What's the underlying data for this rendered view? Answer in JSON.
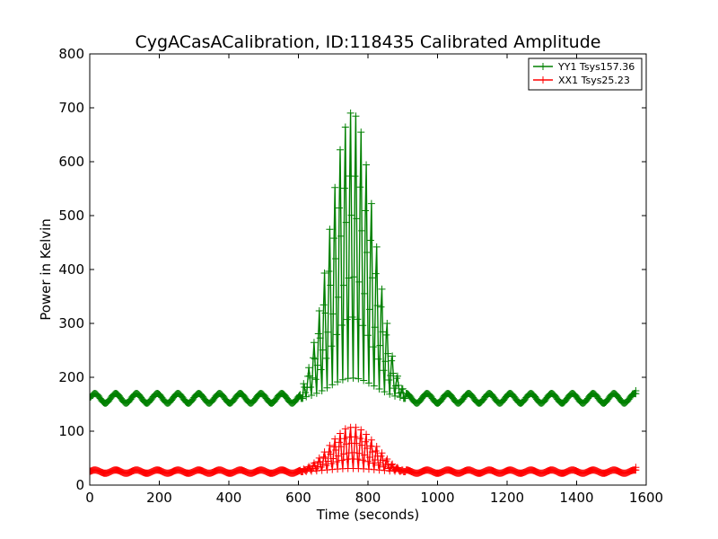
{
  "chart_data": {
    "type": "line",
    "title": "CygACasACalibration, ID:118435 Calibrated Amplitude",
    "xlabel": "Time (seconds)",
    "ylabel": "Power in Kelvin",
    "xlim": [
      0,
      1600
    ],
    "ylim": [
      0,
      800
    ],
    "xticks": [
      "0",
      "200",
      "400",
      "600",
      "800",
      "1000",
      "1200",
      "1400",
      "1600"
    ],
    "yticks": [
      "0",
      "100",
      "200",
      "300",
      "400",
      "500",
      "600",
      "700",
      "800"
    ],
    "legend_position": "top-right",
    "grid": false,
    "series": [
      {
        "name": "YY1 Tsys157.36",
        "color": "#008000",
        "marker": "+",
        "baseline_range": [
          152,
          170
        ],
        "transit_peaks": [
          {
            "x": 615,
            "y": 190
          },
          {
            "x": 630,
            "y": 222
          },
          {
            "x": 645,
            "y": 272
          },
          {
            "x": 660,
            "y": 335
          },
          {
            "x": 675,
            "y": 410
          },
          {
            "x": 690,
            "y": 497
          },
          {
            "x": 705,
            "y": 580
          },
          {
            "x": 720,
            "y": 655
          },
          {
            "x": 735,
            "y": 700
          },
          {
            "x": 750,
            "y": 728
          },
          {
            "x": 765,
            "y": 722
          },
          {
            "x": 780,
            "y": 690
          },
          {
            "x": 795,
            "y": 625
          },
          {
            "x": 810,
            "y": 548
          },
          {
            "x": 825,
            "y": 462
          },
          {
            "x": 840,
            "y": 378
          },
          {
            "x": 855,
            "y": 310
          },
          {
            "x": 870,
            "y": 245
          },
          {
            "x": 885,
            "y": 205
          },
          {
            "x": 900,
            "y": 180
          }
        ]
      },
      {
        "name": "XX1 Tsys25.23",
        "color": "#ff0000",
        "marker": "+",
        "baseline_range": [
          22,
          28
        ],
        "transit_peaks": [
          {
            "x": 615,
            "y": 30
          },
          {
            "x": 630,
            "y": 35
          },
          {
            "x": 645,
            "y": 42
          },
          {
            "x": 660,
            "y": 52
          },
          {
            "x": 675,
            "y": 64
          },
          {
            "x": 690,
            "y": 77
          },
          {
            "x": 705,
            "y": 90
          },
          {
            "x": 720,
            "y": 101
          },
          {
            "x": 735,
            "y": 110
          },
          {
            "x": 750,
            "y": 113
          },
          {
            "x": 765,
            "y": 113
          },
          {
            "x": 780,
            "y": 108
          },
          {
            "x": 795,
            "y": 99
          },
          {
            "x": 810,
            "y": 88
          },
          {
            "x": 825,
            "y": 75
          },
          {
            "x": 840,
            "y": 62
          },
          {
            "x": 855,
            "y": 50
          },
          {
            "x": 870,
            "y": 40
          },
          {
            "x": 885,
            "y": 33
          },
          {
            "x": 900,
            "y": 28
          }
        ]
      }
    ],
    "end_points": [
      {
        "series": "YY1 Tsys157.36",
        "x": 1570,
        "y": 175
      },
      {
        "series": "XX1 Tsys25.23",
        "x": 1570,
        "y": 33
      }
    ]
  }
}
